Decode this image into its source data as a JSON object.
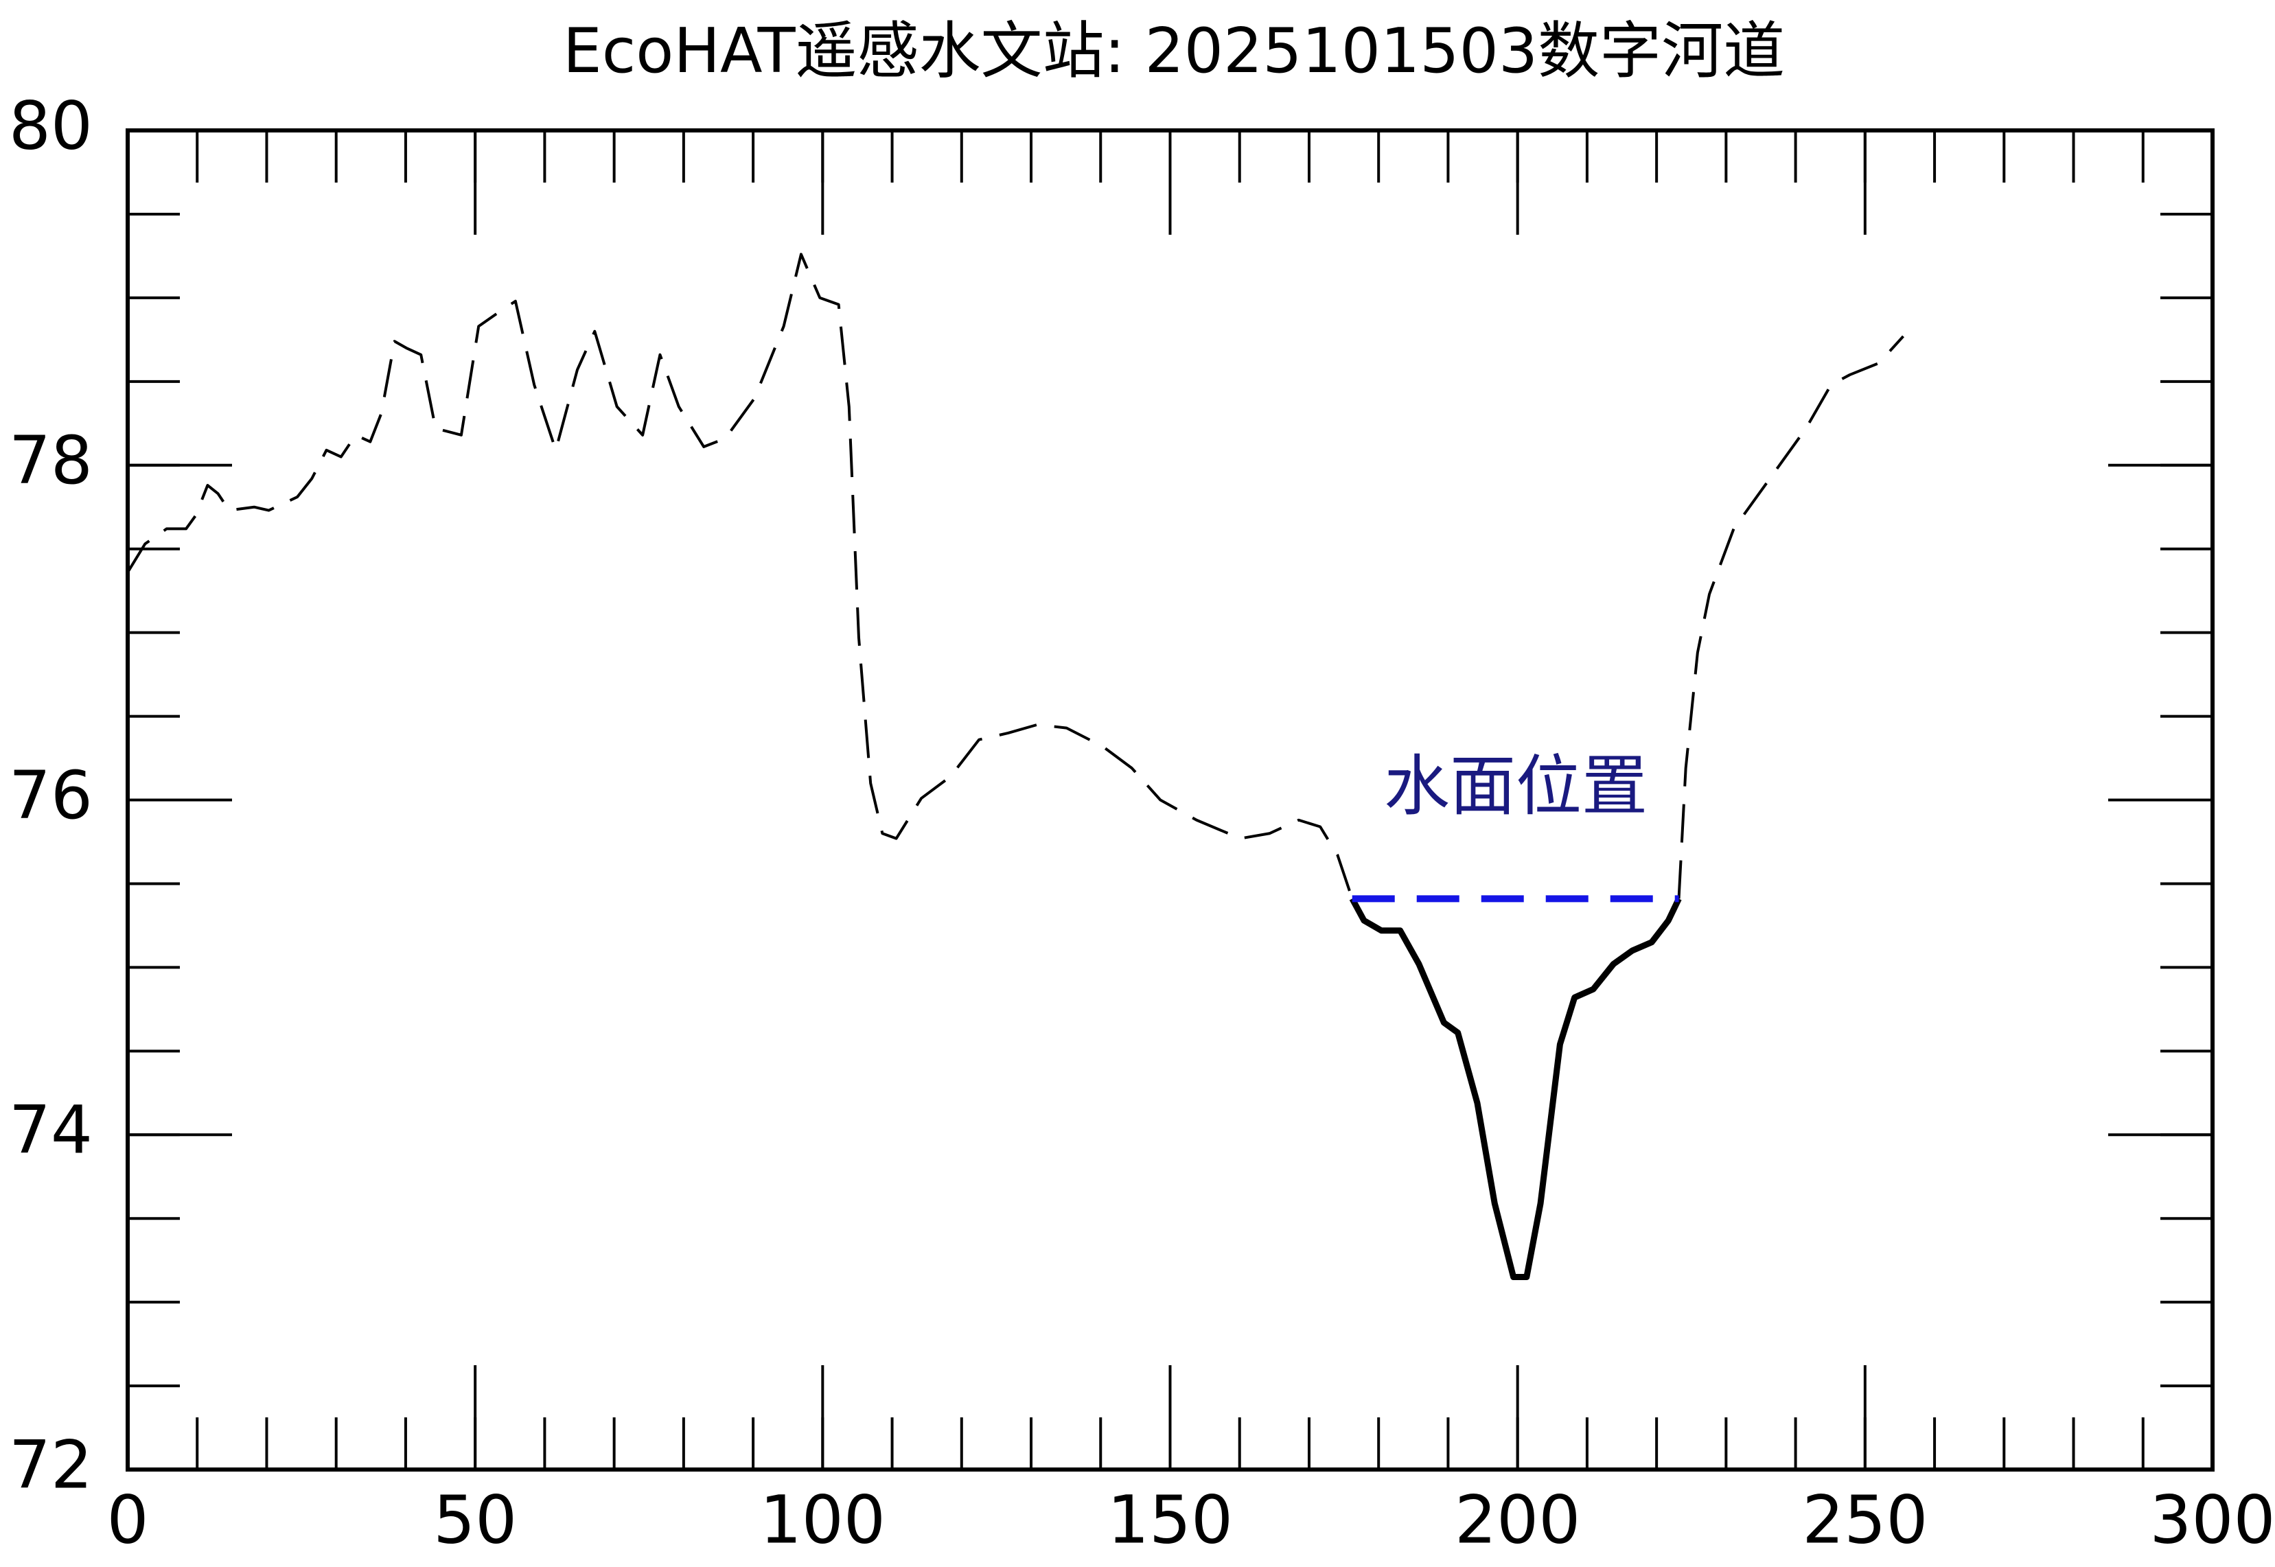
{
  "chart_data": {
    "type": "line",
    "title": "EcoHAT遥感水文站: 2025101503数字河道",
    "annotation": "水面位置",
    "xlim": [
      0,
      300
    ],
    "xticks": [
      0,
      50,
      100,
      150,
      200,
      250,
      300
    ],
    "xminor_step": 10,
    "ylim": [
      72,
      80
    ],
    "yticks": [
      72,
      74,
      76,
      78,
      80
    ],
    "yminor_step": 0.5,
    "series": [
      {
        "color": "#000000",
        "dash": true,
        "width": 4,
        "x": [
          0,
          2.5,
          5.6,
          8.4,
          9.8,
          11.5,
          13,
          14.6,
          18.2,
          20.3,
          24.4,
          26.5,
          28.6,
          30.7,
          32.8,
          34.9,
          36.5,
          38.4,
          40.1,
          42.2,
          44.3,
          48,
          50.5,
          53.6,
          55.8,
          58.5,
          61.6,
          64.7,
          67.2,
          70.4,
          74.1,
          76.6,
          79.3,
          82.9,
          86,
          90.2,
          94.4,
          96.9,
          99.6,
          102.3,
          103.8,
          105.2,
          106.9,
          108.6,
          110.6,
          114.2,
          118.4,
          122.5,
          126.7,
          130.9,
          135.1,
          140.3,
          144.5,
          148.6,
          153.8,
          160.1,
          164.3,
          168.5,
          171.6,
          174.1,
          176.2
        ],
        "values": [
          77.36,
          77.53,
          77.62,
          77.62,
          77.7,
          77.88,
          77.83,
          77.73,
          77.75,
          77.73,
          77.81,
          77.92,
          78.09,
          78.05,
          78.18,
          78.14,
          78.31,
          78.74,
          78.7,
          78.66,
          78.22,
          78.18,
          78.83,
          78.92,
          78.98,
          78.48,
          78.09,
          78.57,
          78.8,
          78.35,
          78.18,
          78.66,
          78.35,
          78.11,
          78.16,
          78.4,
          78.83,
          79.26,
          79.0,
          78.96,
          78.35,
          76.97,
          76.1,
          75.8,
          75.77,
          76.01,
          76.14,
          76.36,
          76.4,
          76.45,
          76.43,
          76.32,
          76.19,
          76.0,
          75.88,
          75.77,
          75.8,
          75.88,
          75.84,
          75.67,
          75.41
        ]
      },
      {
        "color": "#000000",
        "dash": false,
        "width": 9,
        "x": [
          176.2,
          177.9,
          180.4,
          183.1,
          185.8,
          189.4,
          191.4,
          194.2,
          196.7,
          199.4,
          201.3,
          203.3,
          206.1,
          208.2,
          210.9,
          213.8,
          216.5,
          219.3,
          221.7,
          223.2
        ],
        "values": [
          75.41,
          75.28,
          75.22,
          75.22,
          75.02,
          74.67,
          74.61,
          74.19,
          73.59,
          73.15,
          73.15,
          73.59,
          74.54,
          74.82,
          74.87,
          75.02,
          75.1,
          75.15,
          75.28,
          75.41
        ]
      },
      {
        "color": "#000000",
        "dash": true,
        "width": 4,
        "x": [
          223.2,
          224.2,
          225.9,
          227.6,
          231.1,
          236.3,
          241.5,
          245.1,
          247.8,
          252,
          255.5
        ],
        "values": [
          75.41,
          76.19,
          76.88,
          77.23,
          77.62,
          77.92,
          78.22,
          78.48,
          78.54,
          78.61,
          78.77
        ]
      },
      {
        "color": "#1414e6",
        "dash": true,
        "width": 10,
        "x": [
          176.2,
          223.2
        ],
        "values": [
          75.41,
          75.41
        ]
      }
    ]
  }
}
